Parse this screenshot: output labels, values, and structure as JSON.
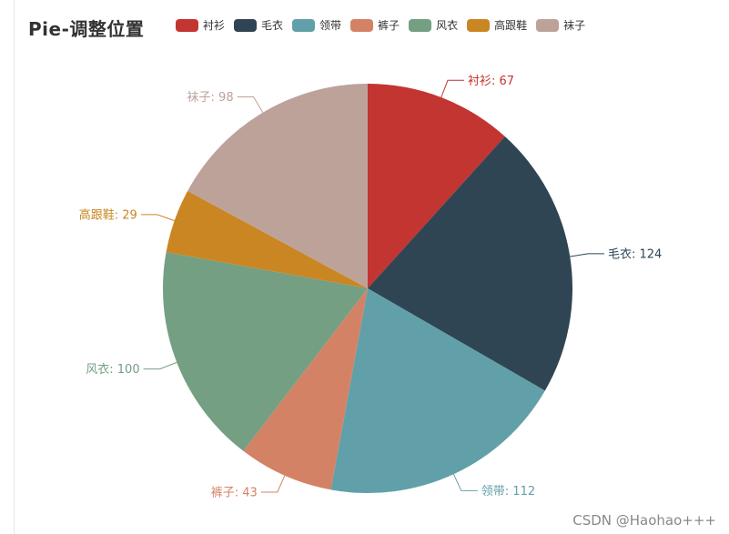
{
  "chart_data": {
    "type": "pie",
    "title": "Pie-调整位置",
    "start_angle_deg": 90,
    "clockwise": true,
    "slices": [
      {
        "name": "衬衫",
        "value": 67,
        "color": "#c23531"
      },
      {
        "name": "毛衣",
        "value": 124,
        "color": "#2f4554"
      },
      {
        "name": "领带",
        "value": 112,
        "color": "#61a0a8"
      },
      {
        "name": "裤子",
        "value": 43,
        "color": "#d48265"
      },
      {
        "name": "风衣",
        "value": 100,
        "color": "#749f83"
      },
      {
        "name": "高跟鞋",
        "value": 29,
        "color": "#ca8622"
      },
      {
        "name": "袜子",
        "value": 98,
        "color": "#bda29a"
      }
    ],
    "legend_position": "top",
    "label_format": "{name}: {value}"
  },
  "watermark": "CSDN @Haohao+++"
}
